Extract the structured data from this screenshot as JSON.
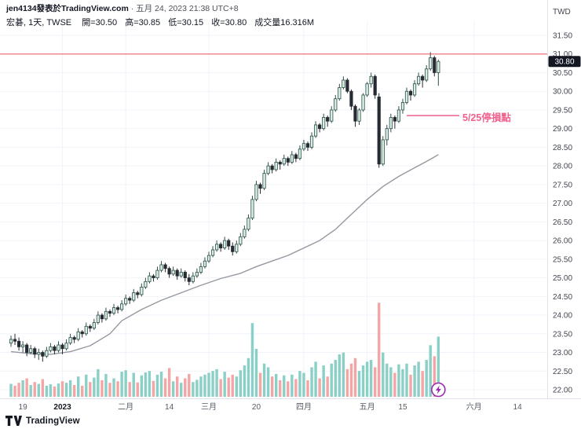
{
  "header": {
    "attribution_main": "jen4134發表於TradingView.com",
    "attribution_meta": " · 五月 24, 2023 21:38 UTC+8"
  },
  "symbol": {
    "title": "宏碁, 1天, TWSE",
    "open": "開=30.50",
    "high": "高=30.85",
    "low": "低=30.15",
    "close": "收=30.80",
    "volume": "成交量16.316M"
  },
  "footer": {
    "logo_text": "TradingView"
  },
  "chart_data": {
    "type": "candlestick",
    "symbol": "宏碁 (TWSE)",
    "interval": "1天",
    "currency_label": "TWD",
    "last_price": 30.8,
    "price_ticks": [
      31.5,
      31.0,
      30.5,
      30.0,
      29.5,
      29.0,
      28.5,
      28.0,
      27.5,
      27.0,
      26.5,
      26.0,
      25.5,
      25.0,
      24.5,
      24.0,
      23.5,
      23.0,
      22.5,
      22.0
    ],
    "ylim": [
      22.0,
      31.5
    ],
    "hline": {
      "price": 31.0,
      "color": "#f2707e"
    },
    "annotation": {
      "text": "5/25停損點",
      "price": 29.35,
      "from_index": 100,
      "color": "#f0618c"
    },
    "marker": {
      "type": "lightning",
      "index": 108,
      "color": "#9c27b0"
    },
    "ma": {
      "color": "#9598a1",
      "points": [
        [
          0,
          23.02
        ],
        [
          5,
          22.97
        ],
        [
          10,
          22.95
        ],
        [
          15,
          23.02
        ],
        [
          20,
          23.18
        ],
        [
          25,
          23.5
        ],
        [
          28,
          23.85
        ],
        [
          33,
          24.15
        ],
        [
          38,
          24.4
        ],
        [
          43,
          24.6
        ],
        [
          48,
          24.8
        ],
        [
          53,
          24.98
        ],
        [
          58,
          25.12
        ],
        [
          62,
          25.3
        ],
        [
          66,
          25.45
        ],
        [
          70,
          25.6
        ],
        [
          74,
          25.8
        ],
        [
          78,
          26.0
        ],
        [
          82,
          26.3
        ],
        [
          86,
          26.7
        ],
        [
          90,
          27.1
        ],
        [
          94,
          27.45
        ],
        [
          98,
          27.72
        ],
        [
          102,
          27.95
        ],
        [
          105,
          28.12
        ],
        [
          108,
          28.3
        ]
      ]
    },
    "time_labels": [
      {
        "text": "19",
        "i": 3
      },
      {
        "text": "2023",
        "i": 13,
        "bold": true
      },
      {
        "text": "二月",
        "i": 29
      },
      {
        "text": "14",
        "i": 40
      },
      {
        "text": "三月",
        "i": 50
      },
      {
        "text": "20",
        "i": 62
      },
      {
        "text": "四月",
        "i": 74
      },
      {
        "text": "五月",
        "i": 90
      },
      {
        "text": "15",
        "i": 99
      },
      {
        "text": "六月",
        "i": 117
      },
      {
        "text": "14",
        "i": 128
      }
    ],
    "month_grid_indices": [
      13,
      29,
      50,
      74,
      90,
      117
    ],
    "volume_max": 26,
    "colors": {
      "up_fill": "#d7efe3",
      "up_border": "#2f4f4a",
      "down_fill": "#262b33",
      "down_border": "#262b33",
      "vol_up": "#8bd0c6",
      "vol_down": "#f3a6a5"
    },
    "candles": [
      [
        23.25,
        23.45,
        23.15,
        23.35,
        3.5
      ],
      [
        23.35,
        23.5,
        23.2,
        23.3,
        3.0
      ],
      [
        23.3,
        23.4,
        23.05,
        23.15,
        3.8
      ],
      [
        23.15,
        23.3,
        23.0,
        23.2,
        4.5
      ],
      [
        23.2,
        23.25,
        22.9,
        23.0,
        5.0
      ],
      [
        23.0,
        23.2,
        22.95,
        23.1,
        3.2
      ],
      [
        23.1,
        23.15,
        22.85,
        22.95,
        4.0
      ],
      [
        22.95,
        23.1,
        22.8,
        23.0,
        3.5
      ],
      [
        23.0,
        23.05,
        22.75,
        22.9,
        4.8
      ],
      [
        22.9,
        23.15,
        22.85,
        23.05,
        3.0
      ],
      [
        23.05,
        23.25,
        23.0,
        23.15,
        3.4
      ],
      [
        23.15,
        23.2,
        22.95,
        23.05,
        2.8
      ],
      [
        23.05,
        23.3,
        23.0,
        23.2,
        3.6
      ],
      [
        23.2,
        23.25,
        22.95,
        23.1,
        4.2
      ],
      [
        23.1,
        23.35,
        23.05,
        23.25,
        3.8
      ],
      [
        23.25,
        23.5,
        23.2,
        23.4,
        4.5
      ],
      [
        23.4,
        23.45,
        23.25,
        23.35,
        3.2
      ],
      [
        23.35,
        23.65,
        23.3,
        23.55,
        5.5
      ],
      [
        23.55,
        23.6,
        23.4,
        23.5,
        3.0
      ],
      [
        23.5,
        23.8,
        23.45,
        23.7,
        6.0
      ],
      [
        23.7,
        23.75,
        23.55,
        23.65,
        4.0
      ],
      [
        23.65,
        23.9,
        23.6,
        23.8,
        5.2
      ],
      [
        23.8,
        24.1,
        23.75,
        24.0,
        7.5
      ],
      [
        24.0,
        24.05,
        23.8,
        23.9,
        4.5
      ],
      [
        23.9,
        24.2,
        23.85,
        24.1,
        6.2
      ],
      [
        24.1,
        24.15,
        23.95,
        24.05,
        3.8
      ],
      [
        24.05,
        24.3,
        24.0,
        24.2,
        5.0
      ],
      [
        24.2,
        24.25,
        24.05,
        24.15,
        4.2
      ],
      [
        24.15,
        24.4,
        24.1,
        24.3,
        6.8
      ],
      [
        24.3,
        24.55,
        24.25,
        24.45,
        7.2
      ],
      [
        24.45,
        24.5,
        24.3,
        24.4,
        4.0
      ],
      [
        24.4,
        24.7,
        24.35,
        24.6,
        6.5
      ],
      [
        24.6,
        24.65,
        24.45,
        24.55,
        3.9
      ],
      [
        24.55,
        24.85,
        24.5,
        24.75,
        5.8
      ],
      [
        24.75,
        25.0,
        24.7,
        24.9,
        6.6
      ],
      [
        24.9,
        25.15,
        24.85,
        25.05,
        7.0
      ],
      [
        25.05,
        25.1,
        24.9,
        25.0,
        4.3
      ],
      [
        25.0,
        25.3,
        24.95,
        25.2,
        6.0
      ],
      [
        25.2,
        25.45,
        25.15,
        25.35,
        6.8
      ],
      [
        25.35,
        25.4,
        25.15,
        25.25,
        5.0
      ],
      [
        25.25,
        25.3,
        25.0,
        25.1,
        7.8
      ],
      [
        25.1,
        25.3,
        25.05,
        25.2,
        4.2
      ],
      [
        25.2,
        25.25,
        24.95,
        25.05,
        5.5
      ],
      [
        25.05,
        25.25,
        25.0,
        25.15,
        3.8
      ],
      [
        25.15,
        25.2,
        24.9,
        25.0,
        5.0
      ],
      [
        25.0,
        25.1,
        24.8,
        24.9,
        6.2
      ],
      [
        24.9,
        25.15,
        24.85,
        25.05,
        4.0
      ],
      [
        25.05,
        25.25,
        25.0,
        25.15,
        4.6
      ],
      [
        25.15,
        25.4,
        25.1,
        25.3,
        5.5
      ],
      [
        25.3,
        25.55,
        25.25,
        25.45,
        6.0
      ],
      [
        25.45,
        25.7,
        25.4,
        25.6,
        6.5
      ],
      [
        25.6,
        25.85,
        25.55,
        25.75,
        7.0
      ],
      [
        25.75,
        26.0,
        25.7,
        25.9,
        7.5
      ],
      [
        25.9,
        25.95,
        25.7,
        25.8,
        4.8
      ],
      [
        25.8,
        26.1,
        25.75,
        26.0,
        6.8
      ],
      [
        26.0,
        26.05,
        25.75,
        25.85,
        5.2
      ],
      [
        25.85,
        25.95,
        25.6,
        25.7,
        6.0
      ],
      [
        25.7,
        26.0,
        25.65,
        25.9,
        5.5
      ],
      [
        25.9,
        26.2,
        25.85,
        26.1,
        7.2
      ],
      [
        26.1,
        26.4,
        26.05,
        26.3,
        8.5
      ],
      [
        26.3,
        26.7,
        26.25,
        26.6,
        10.5
      ],
      [
        26.6,
        27.2,
        26.55,
        27.1,
        20.0
      ],
      [
        27.1,
        27.6,
        27.05,
        27.5,
        13.0
      ],
      [
        27.5,
        27.55,
        27.25,
        27.4,
        6.5
      ],
      [
        27.4,
        27.9,
        27.35,
        27.8,
        9.0
      ],
      [
        27.8,
        28.1,
        27.75,
        28.0,
        8.0
      ],
      [
        28.0,
        28.05,
        27.8,
        27.9,
        5.5
      ],
      [
        27.9,
        28.2,
        27.85,
        28.1,
        6.2
      ],
      [
        28.1,
        28.15,
        27.9,
        28.05,
        4.5
      ],
      [
        28.05,
        28.3,
        28.0,
        28.2,
        5.8
      ],
      [
        28.2,
        28.25,
        28.0,
        28.1,
        4.2
      ],
      [
        28.1,
        28.4,
        28.05,
        28.3,
        6.0
      ],
      [
        28.3,
        28.35,
        28.1,
        28.2,
        4.8
      ],
      [
        28.2,
        28.55,
        28.15,
        28.45,
        7.0
      ],
      [
        28.45,
        28.7,
        28.4,
        28.6,
        6.5
      ],
      [
        28.6,
        28.65,
        28.4,
        28.5,
        4.5
      ],
      [
        28.5,
        28.9,
        28.45,
        28.8,
        8.0
      ],
      [
        28.8,
        29.2,
        28.75,
        29.1,
        9.5
      ],
      [
        29.1,
        29.15,
        28.9,
        29.0,
        5.0
      ],
      [
        29.0,
        29.4,
        28.95,
        29.3,
        8.5
      ],
      [
        29.3,
        29.35,
        29.05,
        29.2,
        5.5
      ],
      [
        29.2,
        29.6,
        29.15,
        29.5,
        9.0
      ],
      [
        29.5,
        29.9,
        29.45,
        29.8,
        10.0
      ],
      [
        29.8,
        30.2,
        29.75,
        30.1,
        11.5
      ],
      [
        30.1,
        30.4,
        30.05,
        30.3,
        12.0
      ],
      [
        30.3,
        30.35,
        29.95,
        30.0,
        7.5
      ],
      [
        30.0,
        30.05,
        29.5,
        29.6,
        9.0
      ],
      [
        29.6,
        29.65,
        29.05,
        29.2,
        10.5
      ],
      [
        29.2,
        29.55,
        29.1,
        29.5,
        7.0
      ],
      [
        29.5,
        29.95,
        29.45,
        29.9,
        8.5
      ],
      [
        29.9,
        30.25,
        29.85,
        30.2,
        9.5
      ],
      [
        30.2,
        30.5,
        30.1,
        30.4,
        10.0
      ],
      [
        30.4,
        30.45,
        29.8,
        29.9,
        8.0
      ],
      [
        29.85,
        29.95,
        27.95,
        28.05,
        25.5
      ],
      [
        28.05,
        28.8,
        28.0,
        28.7,
        12.0
      ],
      [
        28.7,
        29.1,
        28.55,
        29.0,
        9.0
      ],
      [
        29.0,
        29.4,
        28.9,
        29.3,
        8.0
      ],
      [
        29.3,
        29.35,
        29.0,
        29.2,
        6.5
      ],
      [
        29.2,
        29.6,
        29.15,
        29.5,
        8.8
      ],
      [
        29.5,
        29.8,
        29.4,
        29.7,
        7.5
      ],
      [
        29.7,
        30.1,
        29.65,
        30.0,
        9.0
      ],
      [
        30.0,
        30.05,
        29.75,
        29.9,
        6.0
      ],
      [
        29.9,
        30.3,
        29.85,
        30.2,
        8.5
      ],
      [
        30.2,
        30.5,
        30.15,
        30.4,
        9.5
      ],
      [
        30.4,
        30.45,
        30.1,
        30.3,
        7.0
      ],
      [
        30.3,
        30.7,
        30.25,
        30.6,
        10.0
      ],
      [
        30.6,
        31.05,
        30.55,
        30.9,
        14.0
      ],
      [
        30.9,
        30.95,
        30.4,
        30.5,
        11.0
      ],
      [
        30.5,
        30.85,
        30.15,
        30.8,
        16.316
      ]
    ]
  }
}
